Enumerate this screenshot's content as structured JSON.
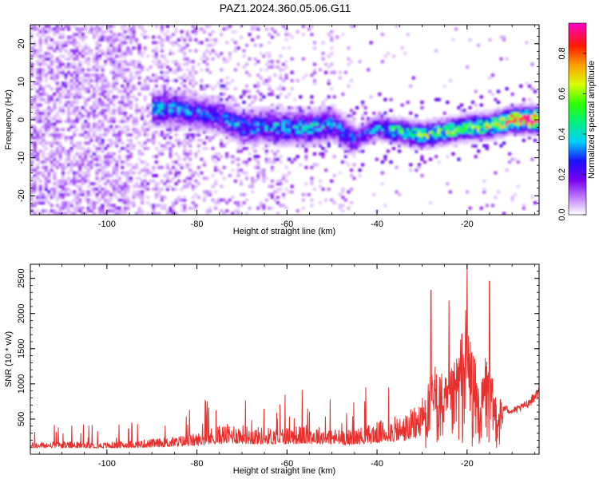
{
  "figure": {
    "title": "PAZ1.2024.360.05.06.G11"
  },
  "chart_data": [
    {
      "type": "heatmap",
      "xlabel": "Height of straight line (km)",
      "ylabel": "Frequency (Hz)",
      "xlim": [
        -117,
        -4
      ],
      "ylim": [
        -25,
        25
      ],
      "xticks": [
        -100,
        -80,
        -60,
        -40,
        -20
      ],
      "yticks": [
        -20,
        -10,
        0,
        10,
        20
      ],
      "xtick_labels": [
        "-100",
        "-80",
        "-60",
        "-40",
        "-20"
      ],
      "ytick_labels": [
        "-20",
        "-10",
        "0",
        "10",
        "20"
      ],
      "colorbar": {
        "label": "Normalized spectral amplitude",
        "range": [
          0,
          0.95
        ],
        "ticks": [
          0.0,
          0.2,
          0.4,
          0.6,
          0.8
        ],
        "tick_labels": [
          "0.0",
          "0.2",
          "0.4",
          "0.6",
          "0.8"
        ],
        "colormap": "rainbow (white → violet → blue → cyan → green → yellow → orange → red → magenta)"
      },
      "ridge": [
        {
          "x": -90,
          "y": 3,
          "amp": 0.35
        },
        {
          "x": -85,
          "y": 3,
          "amp": 0.3
        },
        {
          "x": -80,
          "y": 2,
          "amp": 0.28
        },
        {
          "x": -75,
          "y": 1,
          "amp": 0.25
        },
        {
          "x": -70,
          "y": -2,
          "amp": 0.3
        },
        {
          "x": -65,
          "y": -1.5,
          "amp": 0.3
        },
        {
          "x": -60,
          "y": -2,
          "amp": 0.35
        },
        {
          "x": -55,
          "y": -2,
          "amp": 0.33
        },
        {
          "x": -50,
          "y": -1,
          "amp": 0.3
        },
        {
          "x": -45,
          "y": -5,
          "amp": 0.25
        },
        {
          "x": -40,
          "y": -2,
          "amp": 0.3
        },
        {
          "x": -35,
          "y": -3,
          "amp": 0.45
        },
        {
          "x": -30,
          "y": -4,
          "amp": 0.5
        },
        {
          "x": -25,
          "y": -3,
          "amp": 0.5
        },
        {
          "x": -20,
          "y": -2,
          "amp": 0.55
        },
        {
          "x": -15,
          "y": -1.5,
          "amp": 0.55
        },
        {
          "x": -10,
          "y": 0,
          "amp": 0.8
        },
        {
          "x": -6,
          "y": 0.2,
          "amp": 0.95
        }
      ]
    },
    {
      "type": "line",
      "xlabel": "Height of straight line (km)",
      "ylabel": "SNR (10 * v/v)",
      "xlim": [
        -117,
        -4
      ],
      "ylim": [
        0,
        2700
      ],
      "xticks": [
        -100,
        -80,
        -60,
        -40,
        -20
      ],
      "yticks": [
        500,
        1000,
        1500,
        2000,
        2500
      ],
      "xtick_labels": [
        "-100",
        "-80",
        "-60",
        "-40",
        "-20"
      ],
      "ytick_labels": [
        "500",
        "1000",
        "1500",
        "2000",
        "2500"
      ],
      "series": [
        {
          "color": "#e8302e",
          "envelope": [
            {
              "x": -117,
              "y": 150
            },
            {
              "x": -110,
              "y": 160
            },
            {
              "x": -100,
              "y": 150
            },
            {
              "x": -95,
              "y": 170
            },
            {
              "x": -90,
              "y": 190
            },
            {
              "x": -85,
              "y": 220
            },
            {
              "x": -80,
              "y": 260
            },
            {
              "x": -76,
              "y": 340
            },
            {
              "x": -72,
              "y": 380
            },
            {
              "x": -68,
              "y": 340
            },
            {
              "x": -64,
              "y": 330
            },
            {
              "x": -60,
              "y": 340
            },
            {
              "x": -55,
              "y": 360
            },
            {
              "x": -50,
              "y": 320
            },
            {
              "x": -46,
              "y": 300
            },
            {
              "x": -42,
              "y": 360
            },
            {
              "x": -38,
              "y": 430
            },
            {
              "x": -34,
              "y": 480
            },
            {
              "x": -31,
              "y": 600
            },
            {
              "x": -29,
              "y": 900
            },
            {
              "x": -27,
              "y": 1200
            },
            {
              "x": -25,
              "y": 1000
            },
            {
              "x": -23,
              "y": 1150
            },
            {
              "x": -21,
              "y": 1700
            },
            {
              "x": -20,
              "y": 2000
            },
            {
              "x": -19,
              "y": 1500
            },
            {
              "x": -17,
              "y": 800
            },
            {
              "x": -16,
              "y": 1400
            },
            {
              "x": -14,
              "y": 900
            },
            {
              "x": -12,
              "y": 700
            },
            {
              "x": -10,
              "y": 650
            },
            {
              "x": -8,
              "y": 700
            },
            {
              "x": -6,
              "y": 800
            },
            {
              "x": -4,
              "y": 950
            }
          ],
          "peaks": [
            {
              "x": -20,
              "y": 2700
            },
            {
              "x": -28,
              "y": 2330
            },
            {
              "x": -15,
              "y": 2460
            },
            {
              "x": -24,
              "y": 2180
            }
          ]
        }
      ]
    }
  ]
}
